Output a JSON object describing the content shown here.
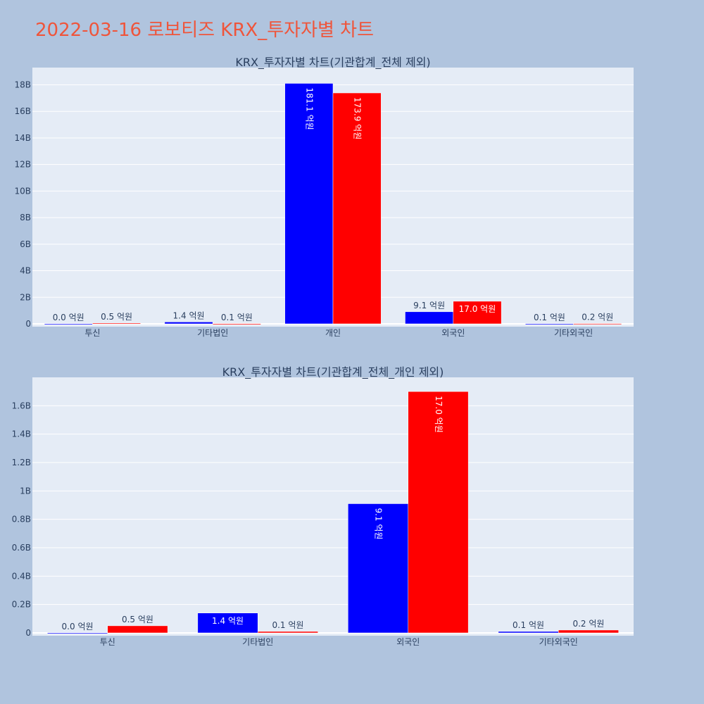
{
  "title": "2022-03-16 로보티즈 KRX_투자자별 차트",
  "colors": {
    "title": "#ef553b",
    "page_bg": "#b0c4de",
    "plot_bg": "#e5ecf6",
    "series_a": "#0000ff",
    "series_b": "#ff0000",
    "text": "#2a3f5f"
  },
  "chart_data": [
    {
      "type": "bar",
      "title": "KRX_투자자별 차트(기관합계_전체 제외)",
      "categories": [
        "투신",
        "기타법인",
        "개인",
        "외국인",
        "기타외국인"
      ],
      "series": [
        {
          "values": [
            0,
            140000000,
            18110000000,
            910000000,
            10000000
          ],
          "labels": [
            "0.0 억원",
            "1.4 억원",
            "181.1 억원",
            "9.1 억원",
            "0.1 억원"
          ],
          "color": "#0000ff"
        },
        {
          "values": [
            50000000,
            10000000,
            17390000000,
            1700000000,
            20000000
          ],
          "labels": [
            "0.5 억원",
            "0.1 억원",
            "173.9 억원",
            "17.0 억원",
            "0.2 억원"
          ],
          "color": "#ff0000"
        }
      ],
      "ylim": [
        0,
        19300000000
      ],
      "yticks": [
        0,
        2000000000,
        4000000000,
        6000000000,
        8000000000,
        10000000000,
        12000000000,
        14000000000,
        16000000000,
        18000000000
      ],
      "ytick_labels": [
        "0",
        "2B",
        "4B",
        "6B",
        "8B",
        "10B",
        "12B",
        "14B",
        "16B",
        "18B"
      ],
      "grid": true
    },
    {
      "type": "bar",
      "title": "KRX_투자자별 차트(기관합계_전체_개인 제외)",
      "categories": [
        "투신",
        "기타법인",
        "외국인",
        "기타외국인"
      ],
      "series": [
        {
          "values": [
            0,
            140000000,
            910000000,
            10000000
          ],
          "labels": [
            "0.0 억원",
            "1.4 억원",
            "9.1 억원",
            "0.1 억원"
          ],
          "color": "#0000ff"
        },
        {
          "values": [
            50000000,
            10000000,
            1700000000,
            20000000
          ],
          "labels": [
            "0.5 억원",
            "0.1 억원",
            "17.0 억원",
            "0.2 억원"
          ],
          "color": "#ff0000"
        }
      ],
      "ylim": [
        0,
        1800000000
      ],
      "yticks": [
        0,
        200000000,
        400000000,
        600000000,
        800000000,
        1000000000,
        1200000000,
        1400000000,
        1600000000
      ],
      "ytick_labels": [
        "0",
        "0.2B",
        "0.4B",
        "0.6B",
        "0.8B",
        "1B",
        "1.2B",
        "1.4B",
        "1.6B"
      ],
      "grid": true
    }
  ]
}
